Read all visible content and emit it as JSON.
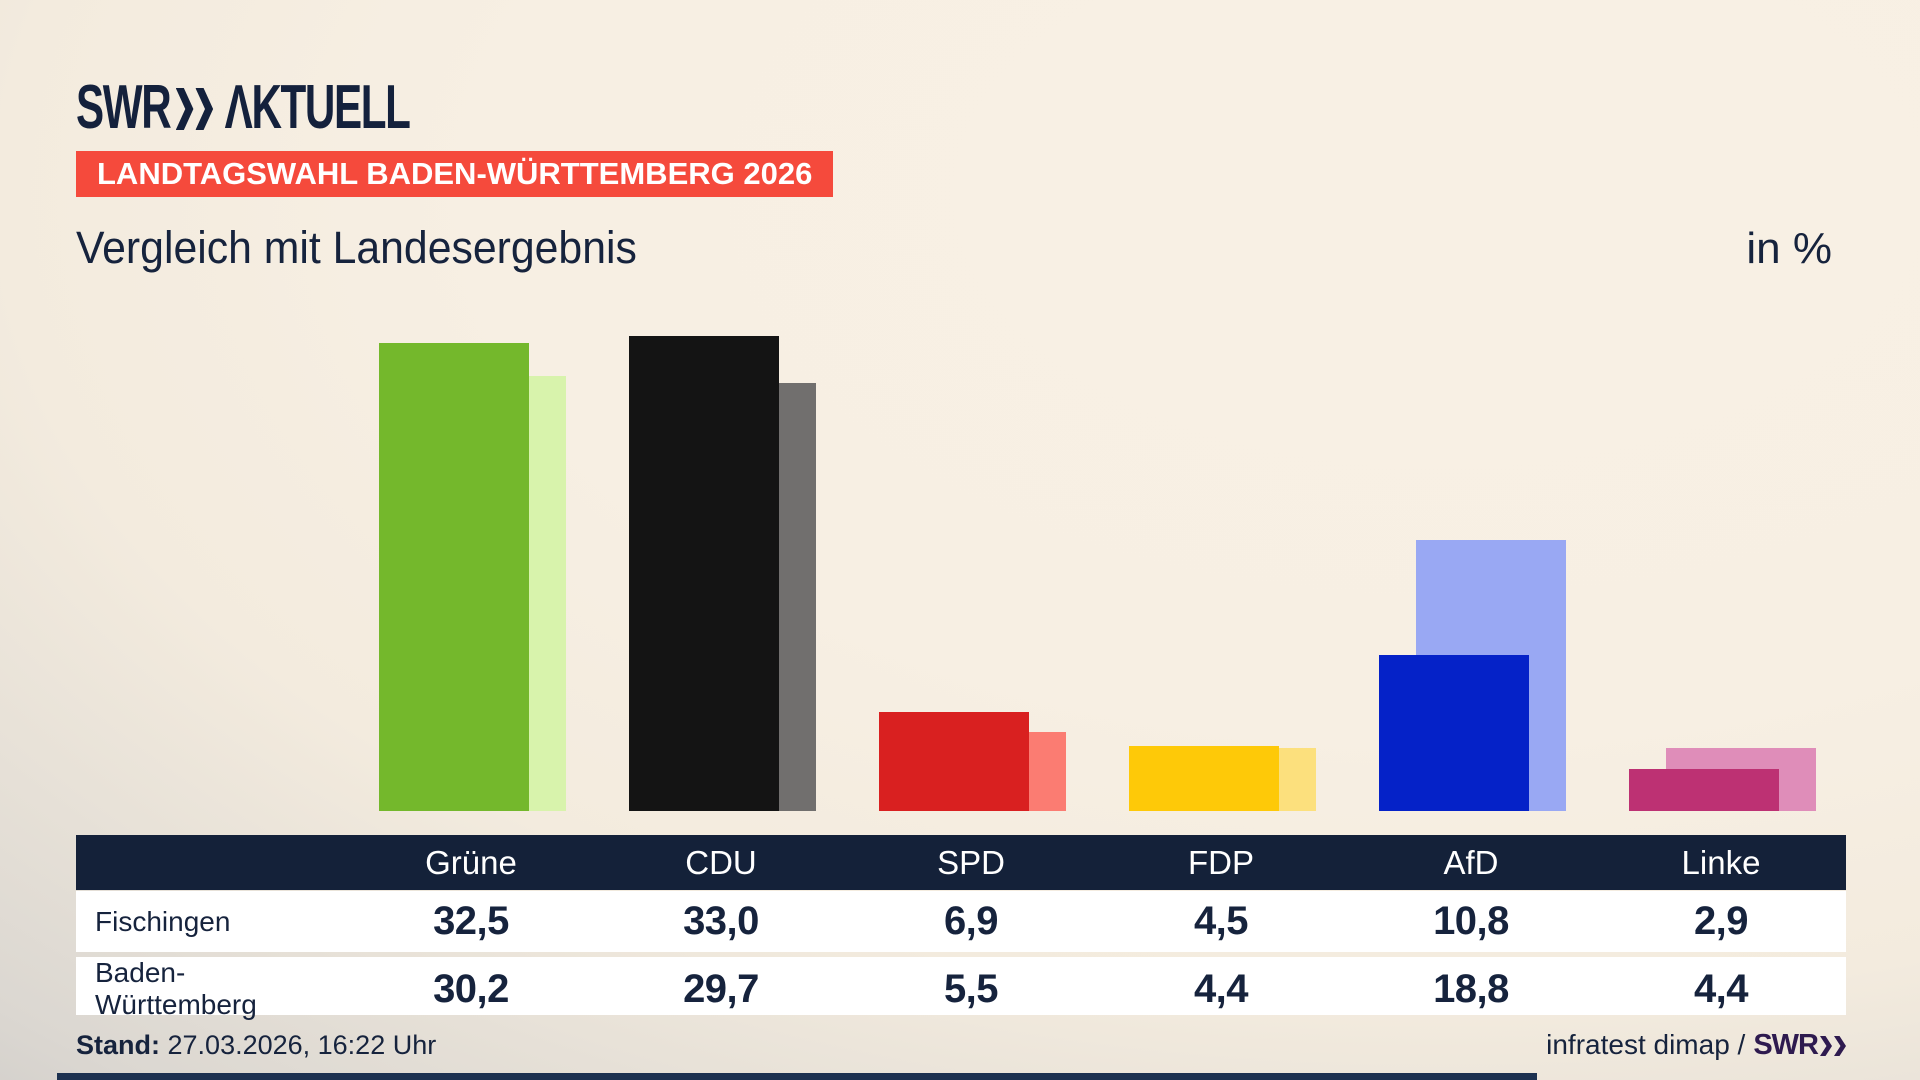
{
  "header": {
    "logo_swr": "SWR",
    "logo_aktuell": "ΛKTUELL",
    "badge": "LANDTAGSWAHL BADEN-WÜRTTEMBERG 2026",
    "title": "Vergleich mit Landesergebnis",
    "unit": "in %"
  },
  "chart_data": {
    "type": "bar",
    "title": "Vergleich mit Landesergebnis",
    "unit": "%",
    "categories": [
      "Grüne",
      "CDU",
      "SPD",
      "FDP",
      "AfD",
      "Linke"
    ],
    "series": [
      {
        "name": "Fischingen",
        "values": [
          32.5,
          33.0,
          6.9,
          4.5,
          10.8,
          2.9
        ],
        "colors": [
          "#74b82c",
          "#141414",
          "#d92020",
          "#fec908",
          "#0522c8",
          "#bd3173"
        ]
      },
      {
        "name": "Baden-Württemberg",
        "values": [
          30.2,
          29.7,
          5.5,
          4.4,
          18.8,
          4.4
        ],
        "colors": [
          "#d8f3ac",
          "#716f6e",
          "#fb7c72",
          "#fce07d",
          "#99a8f3",
          "#df8db9"
        ]
      }
    ],
    "ylim": [
      0,
      33
    ],
    "grid": false,
    "legend_position": "table-below"
  },
  "table": {
    "header": [
      "Grüne",
      "CDU",
      "SPD",
      "FDP",
      "AfD",
      "Linke"
    ],
    "rows": [
      {
        "label": "Fischingen",
        "values": [
          "32,5",
          "33,0",
          "6,9",
          "4,5",
          "10,8",
          "2,9"
        ]
      },
      {
        "label": "Baden-Württemberg",
        "values": [
          "30,2",
          "29,7",
          "5,5",
          "4,4",
          "18,8",
          "4,4"
        ]
      }
    ]
  },
  "footer": {
    "stand_label": "Stand:",
    "stand_value": "27.03.2026, 16:22 Uhr",
    "source_text": "infratest dimap /",
    "source_logo": "SWR"
  },
  "colors": {
    "navy": "#14213c",
    "badge_red": "#f54a3c",
    "table_header": "#142139",
    "footer_logo_purple": "#2e1a4f",
    "background_cream": "#f7efe3",
    "background_gray": "#c6c4c2"
  }
}
